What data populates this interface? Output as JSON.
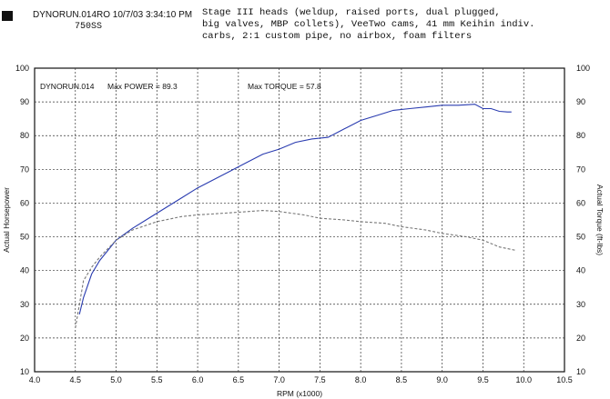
{
  "header": {
    "left_line": "DYNORUN.014RO  10/7/03 3:34:10 PM",
    "sub_line": "750SS",
    "description": [
      "Stage III heads (weldup, raised ports, dual plugged,",
      "big valves, MBP collets), VeeTwo cams, 41 mm Keihin indiv.",
      "carbs, 2:1 custom pipe, no airbox, foam filters"
    ]
  },
  "chart_data": {
    "type": "line",
    "annotations": {
      "run": "DYNORUN.014",
      "max_power": "Max POWER = 89.3",
      "max_torque": "Max TORQUE = 57.8"
    },
    "xlabel": "RPM (x1000)",
    "ylabel_left": "Actual Horsepower",
    "ylabel_right": "Actual Torque (ft-lbs)",
    "xlim": [
      4.0,
      10.5
    ],
    "ylim": [
      10,
      100
    ],
    "xticks": [
      "4.0",
      "4.5",
      "5.0",
      "5.5",
      "6.0",
      "6.5",
      "7.0",
      "7.5",
      "8.0",
      "8.5",
      "9.0",
      "9.5",
      "10.0",
      "10.5"
    ],
    "yticks": [
      "10",
      "20",
      "30",
      "40",
      "50",
      "60",
      "70",
      "80",
      "90",
      "100"
    ],
    "grid": true,
    "series": [
      {
        "color": "#2a3cb0",
        "dash": "",
        "x": [
          4.55,
          4.6,
          4.7,
          4.8,
          4.9,
          5.0,
          5.2,
          5.4,
          5.6,
          5.8,
          6.0,
          6.2,
          6.4,
          6.6,
          6.8,
          7.0,
          7.2,
          7.4,
          7.6,
          7.8,
          8.0,
          8.2,
          8.4,
          8.6,
          8.8,
          9.0,
          9.2,
          9.4,
          9.5,
          9.6,
          9.7,
          9.8,
          9.85
        ],
        "y": [
          27,
          32,
          39,
          43,
          46,
          49,
          52.5,
          55.5,
          58.5,
          61.5,
          64.5,
          67,
          69.5,
          72,
          74.5,
          76,
          78,
          79,
          79.5,
          82,
          84.5,
          86,
          87.5,
          88,
          88.5,
          89,
          89,
          89.3,
          88,
          88,
          87.2,
          87,
          87
        ]
      },
      {
        "color": "#777777",
        "dash": "3,2",
        "x": [
          4.5,
          4.6,
          4.7,
          4.8,
          5.0,
          5.2,
          5.5,
          5.8,
          6.0,
          6.2,
          6.5,
          6.8,
          7.0,
          7.3,
          7.5,
          7.8,
          8.0,
          8.3,
          8.5,
          8.8,
          9.0,
          9.3,
          9.5,
          9.7,
          9.9
        ],
        "y": [
          23,
          37,
          41,
          44,
          49,
          52,
          54.5,
          56,
          56.5,
          56.8,
          57.3,
          57.8,
          57.5,
          56.5,
          55.5,
          55,
          54.5,
          54,
          53,
          52,
          51,
          50,
          49,
          47,
          46
        ]
      }
    ]
  }
}
